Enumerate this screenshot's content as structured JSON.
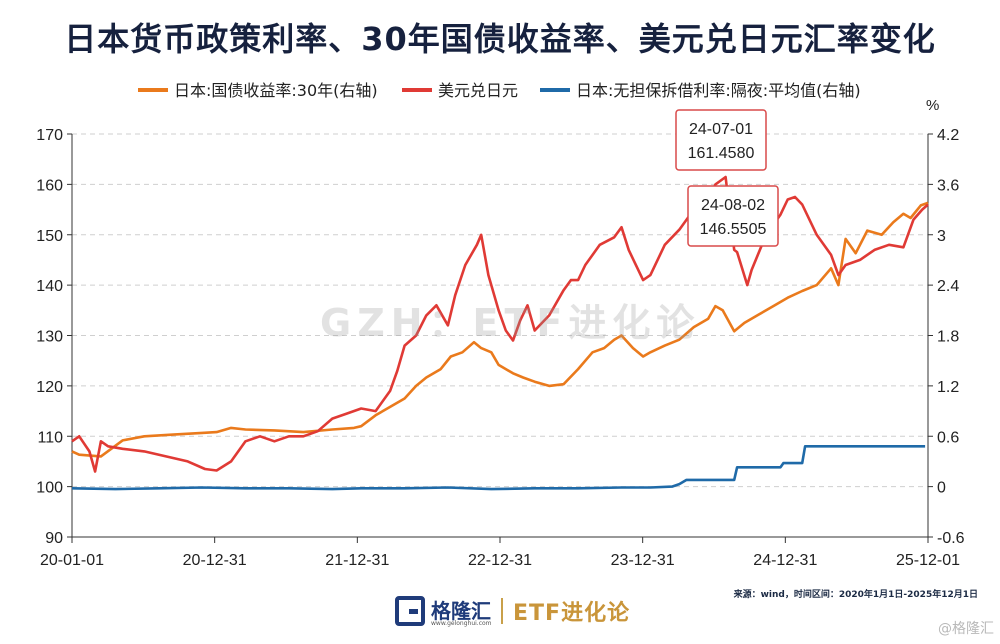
{
  "title": "日本货币政策利率、30年国债收益率、美元兑日元汇率变化",
  "source": "来源：wind，时间区间：2020年1月1日-2025年12月1日",
  "watermark": "GZH：ETF进化论",
  "brand": {
    "name": "格隆汇",
    "url": "www.gelonghui.com",
    "right": "ETF进化论"
  },
  "corner_mark": "@格隆汇",
  "chart_data": {
    "type": "line",
    "title": "日本货币政策利率、30年国债收益率、美元兑日元汇率变化",
    "x_ticks": [
      "20-01-01",
      "20-12-31",
      "21-12-31",
      "22-12-31",
      "23-12-31",
      "24-12-31",
      "25-12-01"
    ],
    "x_range": [
      2020.0,
      2025.92
    ],
    "y_left": {
      "range": [
        90,
        170
      ],
      "ticks": [
        90,
        100,
        110,
        120,
        130,
        140,
        150,
        160,
        170
      ],
      "label": ""
    },
    "y_right": {
      "range": [
        -0.6,
        4.2
      ],
      "ticks": [
        "-0.6",
        "0",
        "0.6",
        "1.2",
        "1.8",
        "2.4",
        "3",
        "3.6",
        "4.2"
      ],
      "unit": "%"
    },
    "grid": true,
    "legend_position": "top",
    "series": [
      {
        "name": "日本:国债收益率:30年(右轴)",
        "color": "#ea7a1c",
        "axis": "right",
        "points": [
          [
            2020.0,
            0.42
          ],
          [
            2020.05,
            0.38
          ],
          [
            2020.2,
            0.36
          ],
          [
            2020.35,
            0.55
          ],
          [
            2020.5,
            0.6
          ],
          [
            2020.7,
            0.62
          ],
          [
            2020.9,
            0.64
          ],
          [
            2021.0,
            0.65
          ],
          [
            2021.1,
            0.7
          ],
          [
            2021.2,
            0.68
          ],
          [
            2021.4,
            0.67
          ],
          [
            2021.6,
            0.65
          ],
          [
            2021.8,
            0.68
          ],
          [
            2021.95,
            0.7
          ],
          [
            2022.0,
            0.72
          ],
          [
            2022.1,
            0.85
          ],
          [
            2022.2,
            0.95
          ],
          [
            2022.3,
            1.05
          ],
          [
            2022.38,
            1.2
          ],
          [
            2022.45,
            1.3
          ],
          [
            2022.55,
            1.4
          ],
          [
            2022.62,
            1.55
          ],
          [
            2022.7,
            1.6
          ],
          [
            2022.78,
            1.72
          ],
          [
            2022.83,
            1.65
          ],
          [
            2022.9,
            1.6
          ],
          [
            2022.95,
            1.45
          ],
          [
            2023.05,
            1.35
          ],
          [
            2023.12,
            1.3
          ],
          [
            2023.2,
            1.25
          ],
          [
            2023.3,
            1.2
          ],
          [
            2023.4,
            1.22
          ],
          [
            2023.5,
            1.4
          ],
          [
            2023.6,
            1.6
          ],
          [
            2023.68,
            1.65
          ],
          [
            2023.75,
            1.75
          ],
          [
            2023.8,
            1.8
          ],
          [
            2023.88,
            1.65
          ],
          [
            2023.95,
            1.55
          ],
          [
            2024.0,
            1.6
          ],
          [
            2024.1,
            1.68
          ],
          [
            2024.2,
            1.75
          ],
          [
            2024.3,
            1.9
          ],
          [
            2024.4,
            2.0
          ],
          [
            2024.45,
            2.15
          ],
          [
            2024.5,
            2.1
          ],
          [
            2024.58,
            1.85
          ],
          [
            2024.65,
            1.95
          ],
          [
            2024.75,
            2.05
          ],
          [
            2024.85,
            2.15
          ],
          [
            2024.95,
            2.25
          ],
          [
            2025.05,
            2.33
          ],
          [
            2025.15,
            2.4
          ],
          [
            2025.25,
            2.6
          ],
          [
            2025.3,
            2.4
          ],
          [
            2025.35,
            2.95
          ],
          [
            2025.42,
            2.78
          ],
          [
            2025.5,
            3.05
          ],
          [
            2025.6,
            3.0
          ],
          [
            2025.68,
            3.15
          ],
          [
            2025.75,
            3.25
          ],
          [
            2025.8,
            3.2
          ],
          [
            2025.87,
            3.35
          ],
          [
            2025.92,
            3.38
          ]
        ]
      },
      {
        "name": "美元兑日元",
        "color": "#e03a35",
        "axis": "left",
        "points": [
          [
            2020.0,
            109
          ],
          [
            2020.05,
            110
          ],
          [
            2020.12,
            107
          ],
          [
            2020.16,
            103
          ],
          [
            2020.2,
            109
          ],
          [
            2020.25,
            108
          ],
          [
            2020.35,
            107.5
          ],
          [
            2020.5,
            107
          ],
          [
            2020.65,
            106
          ],
          [
            2020.8,
            105
          ],
          [
            2020.92,
            103.5
          ],
          [
            2021.0,
            103.2
          ],
          [
            2021.1,
            105
          ],
          [
            2021.2,
            109
          ],
          [
            2021.3,
            110
          ],
          [
            2021.4,
            109
          ],
          [
            2021.5,
            110
          ],
          [
            2021.6,
            110
          ],
          [
            2021.7,
            111
          ],
          [
            2021.8,
            113.5
          ],
          [
            2021.9,
            114.5
          ],
          [
            2022.0,
            115.5
          ],
          [
            2022.1,
            115
          ],
          [
            2022.2,
            119
          ],
          [
            2022.25,
            123
          ],
          [
            2022.3,
            128
          ],
          [
            2022.38,
            130
          ],
          [
            2022.45,
            134
          ],
          [
            2022.52,
            136
          ],
          [
            2022.6,
            132
          ],
          [
            2022.65,
            138
          ],
          [
            2022.72,
            144
          ],
          [
            2022.8,
            148
          ],
          [
            2022.83,
            150
          ],
          [
            2022.88,
            142
          ],
          [
            2022.95,
            135
          ],
          [
            2023.0,
            131
          ],
          [
            2023.05,
            129
          ],
          [
            2023.1,
            133
          ],
          [
            2023.15,
            136
          ],
          [
            2023.2,
            131
          ],
          [
            2023.3,
            134
          ],
          [
            2023.4,
            139
          ],
          [
            2023.45,
            141
          ],
          [
            2023.5,
            141
          ],
          [
            2023.55,
            144
          ],
          [
            2023.65,
            148
          ],
          [
            2023.75,
            149.5
          ],
          [
            2023.8,
            151.5
          ],
          [
            2023.85,
            147
          ],
          [
            2023.95,
            141
          ],
          [
            2024.0,
            142
          ],
          [
            2024.1,
            148
          ],
          [
            2024.2,
            151
          ],
          [
            2024.3,
            155
          ],
          [
            2024.4,
            157
          ],
          [
            2024.45,
            160
          ],
          [
            2024.52,
            161.46
          ],
          [
            2024.58,
            147
          ],
          [
            2024.6,
            146.55
          ],
          [
            2024.67,
            140
          ],
          [
            2024.7,
            143
          ],
          [
            2024.8,
            150
          ],
          [
            2024.9,
            154
          ],
          [
            2024.95,
            157
          ],
          [
            2025.0,
            157.5
          ],
          [
            2025.05,
            156
          ],
          [
            2025.15,
            150
          ],
          [
            2025.25,
            146
          ],
          [
            2025.3,
            142
          ],
          [
            2025.35,
            144
          ],
          [
            2025.45,
            145
          ],
          [
            2025.55,
            147
          ],
          [
            2025.65,
            148
          ],
          [
            2025.75,
            147.5
          ],
          [
            2025.82,
            153
          ],
          [
            2025.88,
            155
          ],
          [
            2025.92,
            156
          ]
        ]
      },
      {
        "name": "日本:无担保拆借利率:隔夜:平均值(右轴)",
        "color": "#1f6aa8",
        "axis": "right",
        "points": [
          [
            2020.0,
            -0.02
          ],
          [
            2020.3,
            -0.03
          ],
          [
            2020.6,
            -0.02
          ],
          [
            2020.9,
            -0.01
          ],
          [
            2021.2,
            -0.02
          ],
          [
            2021.5,
            -0.02
          ],
          [
            2021.8,
            -0.03
          ],
          [
            2022.0,
            -0.02
          ],
          [
            2022.3,
            -0.02
          ],
          [
            2022.6,
            -0.01
          ],
          [
            2022.9,
            -0.03
          ],
          [
            2023.2,
            -0.02
          ],
          [
            2023.5,
            -0.02
          ],
          [
            2023.8,
            -0.01
          ],
          [
            2024.0,
            -0.01
          ],
          [
            2024.15,
            0.0
          ],
          [
            2024.2,
            0.03
          ],
          [
            2024.25,
            0.08
          ],
          [
            2024.58,
            0.08
          ],
          [
            2024.6,
            0.23
          ],
          [
            2024.9,
            0.23
          ],
          [
            2024.92,
            0.28
          ],
          [
            2025.05,
            0.28
          ],
          [
            2025.07,
            0.48
          ],
          [
            2025.9,
            0.48
          ]
        ]
      }
    ],
    "annotations": [
      {
        "date": "24-07-01",
        "value": "161.4580",
        "x": 2024.52,
        "y": 161.458
      },
      {
        "date": "24-08-02",
        "value": "146.5505",
        "x": 2024.6,
        "y": 146.5505
      }
    ]
  }
}
